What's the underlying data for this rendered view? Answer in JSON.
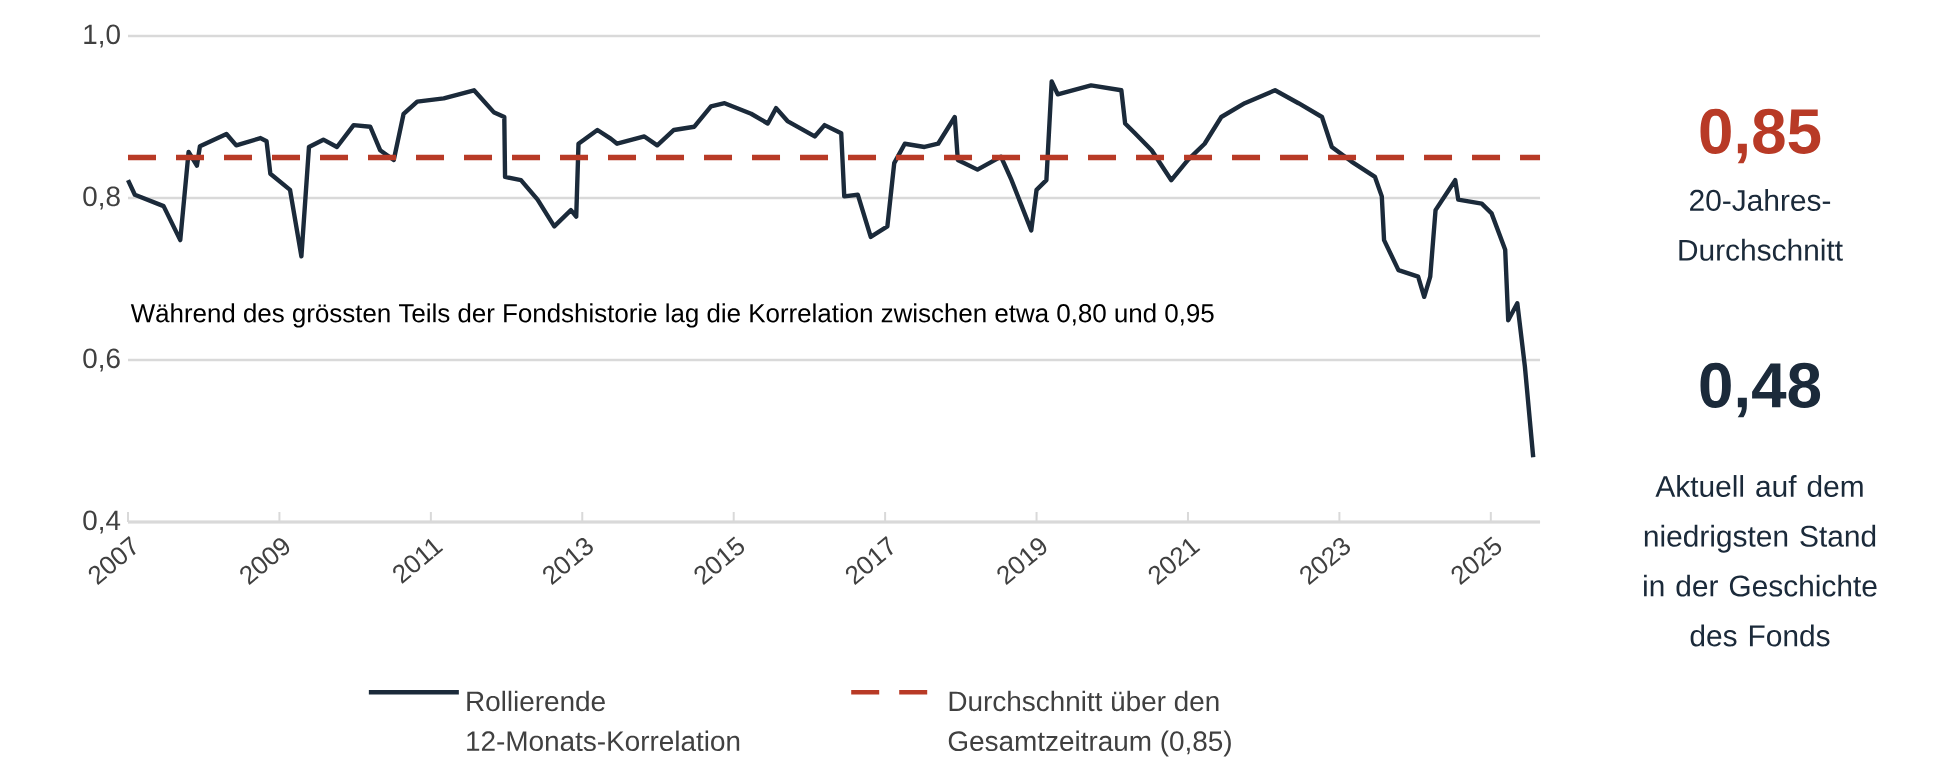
{
  "chart_data": {
    "type": "line",
    "x": [
      2007.0,
      2007.09,
      2007.47,
      2007.69,
      2007.8,
      2007.91,
      2007.95,
      2008.3,
      2008.43,
      2008.75,
      2008.83,
      2008.88,
      2009.14,
      2009.29,
      2009.39,
      2009.58,
      2009.76,
      2009.98,
      2010.2,
      2010.33,
      2010.51,
      2010.64,
      2010.82,
      2011.17,
      2011.57,
      2011.83,
      2011.97,
      2011.98,
      2012.19,
      2012.41,
      2012.63,
      2012.85,
      2012.92,
      2012.95,
      2013.2,
      2013.38,
      2013.46,
      2013.82,
      2013.99,
      2014.21,
      2014.48,
      2014.7,
      2014.88,
      2015.23,
      2015.45,
      2015.56,
      2015.71,
      2016.07,
      2016.2,
      2016.42,
      2016.46,
      2016.64,
      2016.81,
      2017.03,
      2017.12,
      2017.26,
      2017.52,
      2017.7,
      2017.92,
      2017.96,
      2018.22,
      2018.53,
      2018.67,
      2018.93,
      2019.0,
      2019.13,
      2019.2,
      2019.28,
      2019.72,
      2020.12,
      2020.17,
      2020.3,
      2020.52,
      2020.78,
      2021.0,
      2021.22,
      2021.44,
      2021.75,
      2022.15,
      2022.46,
      2022.77,
      2022.9,
      2023.16,
      2023.47,
      2023.56,
      2023.59,
      2023.78,
      2024.04,
      2024.12,
      2024.2,
      2024.27,
      2024.53,
      2024.57,
      2024.88,
      2025.01,
      2025.19,
      2025.23,
      2025.35,
      2025.45,
      2025.56
    ],
    "series": [
      {
        "name": "Rollierende 12-Monats-Korrelation",
        "color": "#1b2a3a",
        "values": [
          0.822,
          0.804,
          0.79,
          0.748,
          0.857,
          0.84,
          0.864,
          0.879,
          0.865,
          0.874,
          0.87,
          0.83,
          0.81,
          0.728,
          0.863,
          0.872,
          0.863,
          0.89,
          0.888,
          0.859,
          0.847,
          0.904,
          0.919,
          0.923,
          0.933,
          0.906,
          0.9,
          0.826,
          0.822,
          0.798,
          0.765,
          0.785,
          0.777,
          0.867,
          0.884,
          0.873,
          0.867,
          0.876,
          0.865,
          0.884,
          0.888,
          0.913,
          0.917,
          0.904,
          0.892,
          0.911,
          0.895,
          0.876,
          0.89,
          0.88,
          0.802,
          0.804,
          0.752,
          0.765,
          0.843,
          0.867,
          0.863,
          0.867,
          0.9,
          0.847,
          0.835,
          0.851,
          0.822,
          0.76,
          0.81,
          0.822,
          0.944,
          0.928,
          0.939,
          0.933,
          0.892,
          0.88,
          0.859,
          0.822,
          0.847,
          0.867,
          0.9,
          0.917,
          0.933,
          0.917,
          0.9,
          0.863,
          0.845,
          0.826,
          0.802,
          0.748,
          0.711,
          0.703,
          0.678,
          0.703,
          0.785,
          0.822,
          0.798,
          0.793,
          0.781,
          0.736,
          0.649,
          0.67,
          0.592,
          0.48
        ]
      }
    ],
    "ref_lines": [
      {
        "axis": "y",
        "value": 0.85,
        "label": "Durchschnitt über den Gesamtzeitraum (0,85)",
        "color": "#b83a26",
        "line_style": "dashed"
      }
    ],
    "xlim": [
      2007,
      2025.65
    ],
    "xticks": [
      2007,
      2009,
      2011,
      2013,
      2015,
      2017,
      2019,
      2021,
      2023,
      2025
    ],
    "ylim": [
      0.4,
      1.0
    ],
    "yticks": [
      {
        "value": 0.4,
        "label": "0,4"
      },
      {
        "value": 0.6,
        "label": "0,6"
      },
      {
        "value": 0.8,
        "label": "0,8"
      },
      {
        "value": 1.0,
        "label": "1,0"
      }
    ],
    "grid": "y",
    "legend": "bottom",
    "marker": "none",
    "line_style": "solid",
    "annotations": [
      "Während des grössten Teils der Fondshistorie lag die Korrelation zwischen etwa 0,80 und 0,95",
      "0,85",
      "20-Jahres-Durchschnitt",
      "0,48",
      "Aktuell auf dem niedrigsten Stand in der Geschichte des Fonds"
    ]
  }
}
